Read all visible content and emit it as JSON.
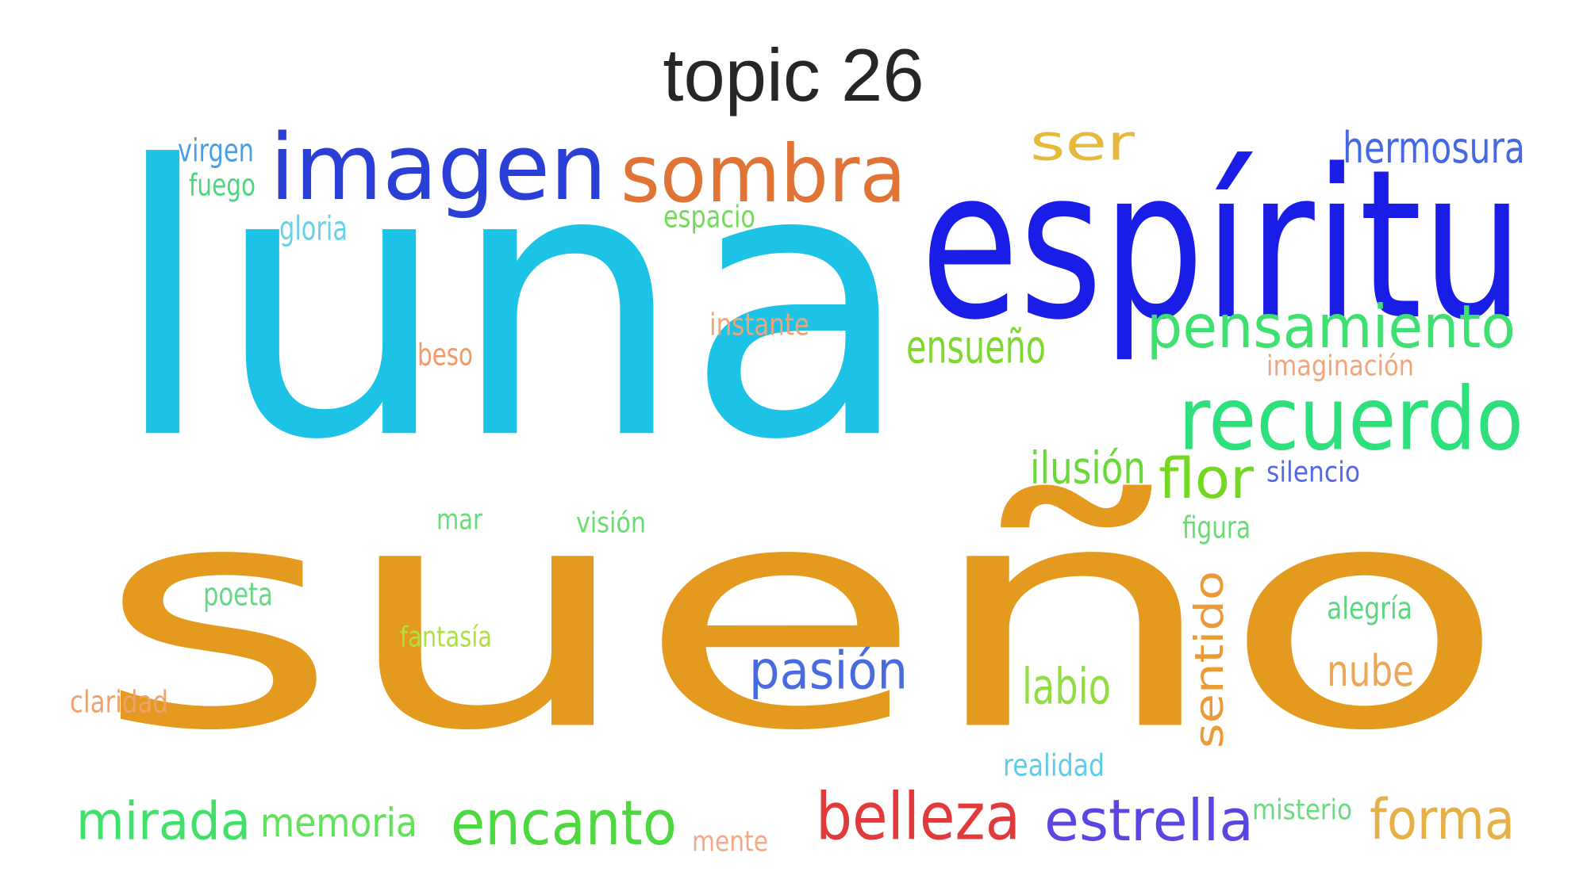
{
  "title": "topic 26",
  "words": [
    {
      "text": "sueño",
      "color": "#e39a1e"
    },
    {
      "text": "luna",
      "color": "#1cc3e6"
    },
    {
      "text": "espíritu",
      "color": "#1a1de6"
    },
    {
      "text": "imagen",
      "color": "#2a3fd6"
    },
    {
      "text": "sombra",
      "color": "#e07436"
    },
    {
      "text": "recuerdo",
      "color": "#2ee07c"
    },
    {
      "text": "pensamiento",
      "color": "#3ee070"
    },
    {
      "text": "ser",
      "color": "#e7b93a"
    },
    {
      "text": "hermosura",
      "color": "#4668e2"
    },
    {
      "text": "belleza",
      "color": "#e23a3a"
    },
    {
      "text": "estrella",
      "color": "#5a46e2"
    },
    {
      "text": "encanto",
      "color": "#4ed840"
    },
    {
      "text": "forma",
      "color": "#e6b048"
    },
    {
      "text": "mirada",
      "color": "#42e06a"
    },
    {
      "text": "memoria",
      "color": "#62e25a"
    },
    {
      "text": "pasión",
      "color": "#4a6ae0"
    },
    {
      "text": "sentido",
      "color": "#ec9a38"
    },
    {
      "text": "flor",
      "color": "#74d820"
    },
    {
      "text": "labio",
      "color": "#94dc44"
    },
    {
      "text": "nube",
      "color": "#eaa65a"
    },
    {
      "text": "ilusión",
      "color": "#6ad83a"
    },
    {
      "text": "ensueño",
      "color": "#7ed830"
    },
    {
      "text": "virgen",
      "color": "#4a9ee6"
    },
    {
      "text": "fuego",
      "color": "#4ed67e"
    },
    {
      "text": "gloria",
      "color": "#6ad0e6"
    },
    {
      "text": "espacio",
      "color": "#72dc5a"
    },
    {
      "text": "instante",
      "color": "#f2a474"
    },
    {
      "text": "beso",
      "color": "#f09a6a"
    },
    {
      "text": "imaginación",
      "color": "#f2a47a"
    },
    {
      "text": "silencio",
      "color": "#5468e6"
    },
    {
      "text": "mar",
      "color": "#66dc7a"
    },
    {
      "text": "visión",
      "color": "#6adc70"
    },
    {
      "text": "figura",
      "color": "#66dc72"
    },
    {
      "text": "poeta",
      "color": "#66d886"
    },
    {
      "text": "fantasía",
      "color": "#b0e040"
    },
    {
      "text": "alegría",
      "color": "#5ad880"
    },
    {
      "text": "claridad",
      "color": "#f0a26c"
    },
    {
      "text": "realidad",
      "color": "#5ecce8"
    },
    {
      "text": "misterio",
      "color": "#6adc80"
    },
    {
      "text": "mente",
      "color": "#f4a88a"
    }
  ]
}
